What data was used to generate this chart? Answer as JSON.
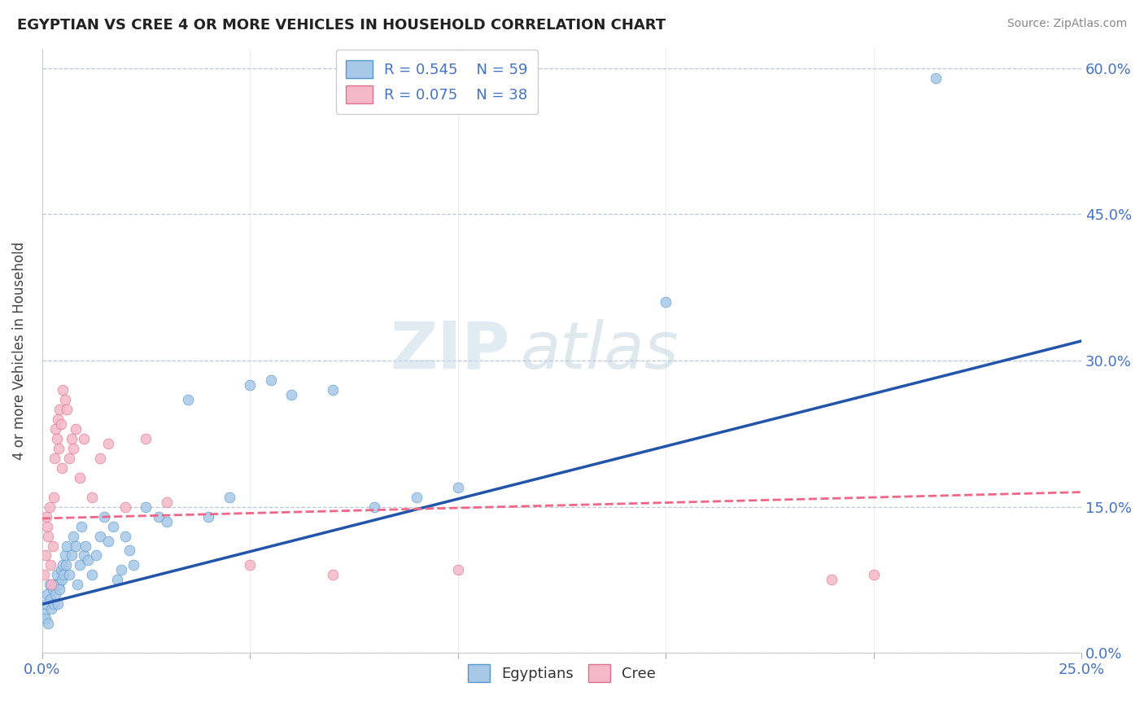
{
  "title": "EGYPTIAN VS CREE 4 OR MORE VEHICLES IN HOUSEHOLD CORRELATION CHART",
  "source": "Source: ZipAtlas.com",
  "ylabel": "4 or more Vehicles in Household",
  "legend_blue_r": "R = 0.545",
  "legend_blue_n": "N = 59",
  "legend_pink_r": "R = 0.075",
  "legend_pink_n": "N = 38",
  "watermark_zip": "ZIP",
  "watermark_atlas": "atlas",
  "blue_color": "#a8c8e8",
  "blue_edge": "#5599cc",
  "pink_color": "#f4b8c8",
  "pink_edge": "#e07090",
  "blue_line_color": "#2255aa",
  "pink_line_color": "#ee6688",
  "xlim": [
    0.0,
    25.0
  ],
  "ylim": [
    0.0,
    62.0
  ],
  "x_ticks": [
    0,
    5,
    10,
    15,
    20,
    25
  ],
  "y_ticks": [
    0,
    15,
    30,
    45,
    60
  ],
  "blue_line_x0": 0.0,
  "blue_line_y0": 5.0,
  "blue_line_x1": 25.0,
  "blue_line_y1": 32.0,
  "pink_line_x0": 0.0,
  "pink_line_y0": 13.8,
  "pink_line_x1": 25.0,
  "pink_line_y1": 16.5,
  "blue_scatter_x": [
    0.05,
    0.08,
    0.1,
    0.12,
    0.15,
    0.18,
    0.2,
    0.22,
    0.25,
    0.28,
    0.3,
    0.32,
    0.35,
    0.38,
    0.4,
    0.42,
    0.45,
    0.48,
    0.5,
    0.52,
    0.55,
    0.58,
    0.6,
    0.65,
    0.7,
    0.75,
    0.8,
    0.85,
    0.9,
    0.95,
    1.0,
    1.05,
    1.1,
    1.2,
    1.3,
    1.4,
    1.5,
    1.6,
    1.7,
    1.8,
    1.9,
    2.0,
    2.1,
    2.2,
    2.5,
    2.8,
    3.0,
    3.5,
    4.0,
    4.5,
    5.0,
    5.5,
    6.0,
    7.0,
    8.0,
    9.0,
    10.0,
    15.0,
    21.5
  ],
  "blue_scatter_y": [
    4.0,
    3.5,
    5.0,
    6.0,
    3.0,
    7.0,
    5.5,
    4.5,
    6.5,
    5.0,
    7.0,
    6.0,
    8.0,
    5.0,
    7.0,
    6.5,
    8.5,
    7.5,
    9.0,
    8.0,
    10.0,
    9.0,
    11.0,
    8.0,
    10.0,
    12.0,
    11.0,
    7.0,
    9.0,
    13.0,
    10.0,
    11.0,
    9.5,
    8.0,
    10.0,
    12.0,
    14.0,
    11.5,
    13.0,
    7.5,
    8.5,
    12.0,
    10.5,
    9.0,
    15.0,
    14.0,
    13.5,
    26.0,
    14.0,
    16.0,
    27.5,
    28.0,
    26.5,
    27.0,
    15.0,
    16.0,
    17.0,
    36.0,
    59.0
  ],
  "pink_scatter_x": [
    0.05,
    0.08,
    0.1,
    0.12,
    0.15,
    0.18,
    0.2,
    0.22,
    0.25,
    0.28,
    0.3,
    0.32,
    0.35,
    0.38,
    0.4,
    0.42,
    0.45,
    0.48,
    0.5,
    0.55,
    0.6,
    0.65,
    0.7,
    0.75,
    0.8,
    0.9,
    1.0,
    1.2,
    1.4,
    1.6,
    2.0,
    2.5,
    3.0,
    5.0,
    7.0,
    10.0,
    19.0,
    20.0
  ],
  "pink_scatter_y": [
    8.0,
    10.0,
    14.0,
    13.0,
    12.0,
    15.0,
    9.0,
    7.0,
    11.0,
    16.0,
    20.0,
    23.0,
    22.0,
    24.0,
    21.0,
    25.0,
    23.5,
    19.0,
    27.0,
    26.0,
    25.0,
    20.0,
    22.0,
    21.0,
    23.0,
    18.0,
    22.0,
    16.0,
    20.0,
    21.5,
    15.0,
    22.0,
    15.5,
    9.0,
    8.0,
    8.5,
    7.5,
    8.0
  ]
}
